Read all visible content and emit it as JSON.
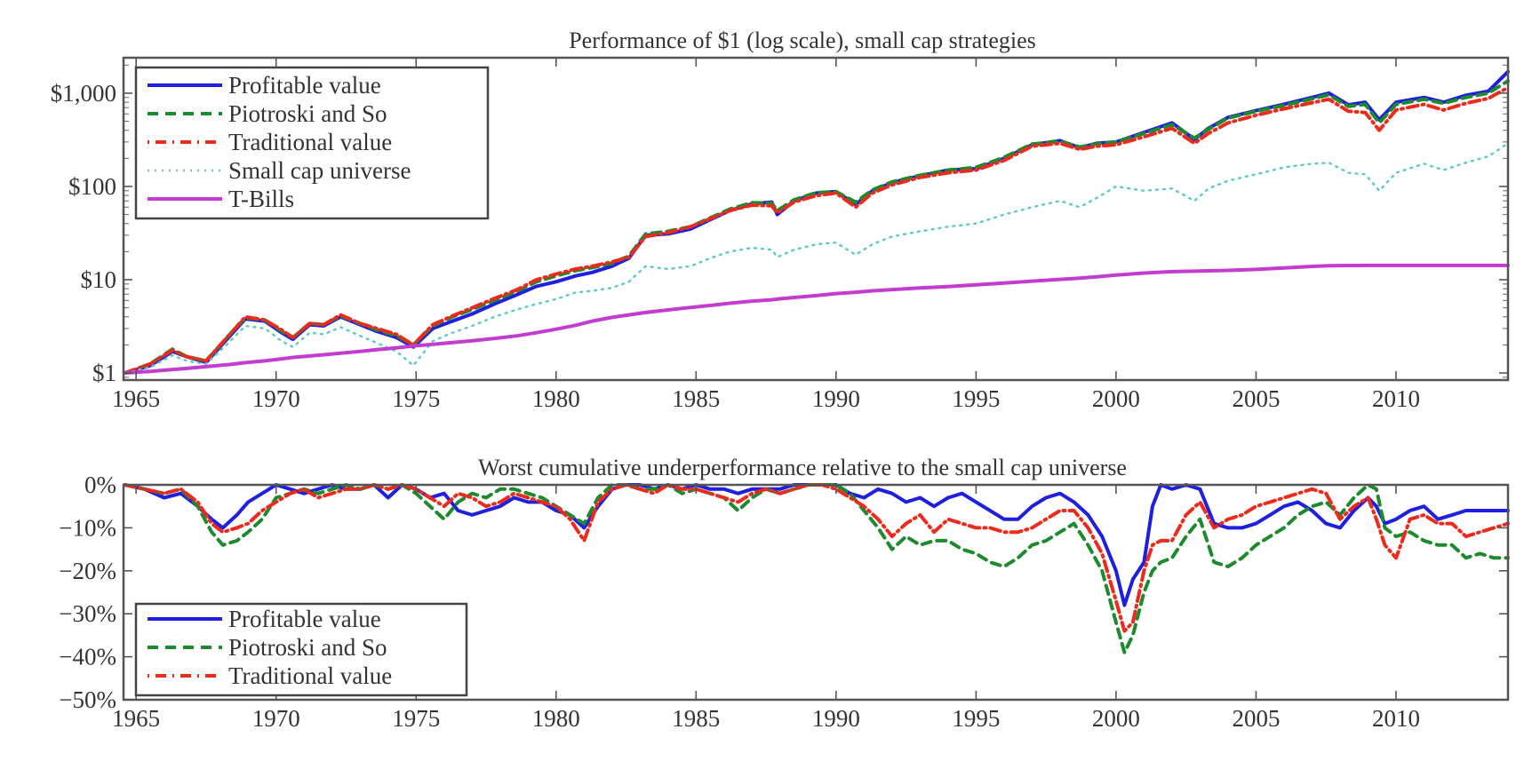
{
  "chart_data": [
    {
      "id": "performance",
      "type": "line",
      "title": "Performance of $1 (log scale), small cap strategies",
      "xlabel": "",
      "ylabel": "",
      "yscale": "log",
      "xlim": [
        1964.55,
        2014.0
      ],
      "ylim": [
        0.84,
        2400
      ],
      "grid": false,
      "legend_position": "top-left",
      "x_ticks": [
        1965,
        1970,
        1975,
        1980,
        1985,
        1990,
        1995,
        2000,
        2005,
        2010
      ],
      "x_tick_labels": [
        "1965",
        "1970",
        "1975",
        "1980",
        "1985",
        "1990",
        "1995",
        "2000",
        "2005",
        "2010"
      ],
      "y_ticks": [
        1,
        10,
        100,
        1000
      ],
      "y_tick_labels": [
        "$1",
        "$10",
        "$100",
        "$1,000"
      ],
      "x": [
        1964.6,
        1965.5,
        1966.3,
        1966.8,
        1967.5,
        1968.3,
        1968.9,
        1969.6,
        1970.2,
        1970.6,
        1971.2,
        1971.7,
        1972.3,
        1973.0,
        1973.6,
        1974.3,
        1974.9,
        1975.6,
        1976.3,
        1977.0,
        1977.8,
        1978.6,
        1979.3,
        1980.0,
        1980.7,
        1981.3,
        1982.0,
        1982.6,
        1983.2,
        1984.0,
        1984.8,
        1985.5,
        1986.2,
        1987.0,
        1987.7,
        1987.9,
        1988.5,
        1989.3,
        1990.0,
        1990.7,
        1991.3,
        1992.0,
        1993.0,
        1994.0,
        1995.0,
        1996.0,
        1997.0,
        1998.0,
        1998.7,
        1999.3,
        2000.0,
        2001.0,
        2002.0,
        2002.8,
        2003.3,
        2004.0,
        2005.0,
        2006.0,
        2007.0,
        2007.6,
        2008.3,
        2008.9,
        2009.4,
        2010.0,
        2011.0,
        2011.7,
        2012.5,
        2013.3,
        2014.0
      ],
      "series": [
        {
          "name": "Profitable value",
          "color": "#1f1fe0",
          "dash": "solid",
          "values": [
            1.0,
            1.2,
            1.7,
            1.5,
            1.3,
            2.4,
            3.8,
            3.6,
            2.7,
            2.3,
            3.3,
            3.2,
            4.0,
            3.3,
            2.8,
            2.4,
            1.9,
            3.0,
            3.6,
            4.3,
            5.5,
            6.9,
            8.5,
            9.5,
            11.0,
            12.0,
            14.0,
            17.0,
            30.0,
            31.0,
            35.0,
            44.0,
            55.0,
            65.0,
            68.0,
            50.0,
            70.0,
            85.0,
            88.0,
            64.0,
            90.0,
            110.0,
            130.0,
            150.0,
            155.0,
            200.0,
            280.0,
            310.0,
            260.0,
            290.0,
            300.0,
            380.0,
            480.0,
            320.0,
            420.0,
            550.0,
            650.0,
            760.0,
            900.0,
            1000.0,
            750.0,
            800.0,
            520.0,
            800.0,
            900.0,
            800.0,
            950.0,
            1050.0,
            1700.0
          ]
        },
        {
          "name": "Piotroski and So",
          "color": "#1e8a2e",
          "dash": "10,7",
          "values": [
            1.0,
            1.25,
            1.8,
            1.5,
            1.35,
            2.5,
            3.9,
            3.7,
            2.8,
            2.4,
            3.4,
            3.3,
            4.1,
            3.4,
            2.9,
            2.5,
            2.0,
            3.2,
            4.0,
            4.8,
            6.0,
            7.5,
            9.5,
            11.0,
            12.5,
            13.5,
            15.0,
            18.0,
            31.0,
            33.0,
            37.0,
            46.0,
            57.0,
            67.0,
            66.0,
            55.0,
            72.0,
            86.0,
            88.0,
            68.0,
            92.0,
            112.0,
            132.0,
            150.0,
            160.0,
            205.0,
            285.0,
            305.0,
            265.0,
            285.0,
            300.0,
            370.0,
            460.0,
            330.0,
            410.0,
            540.0,
            640.0,
            740.0,
            870.0,
            960.0,
            720.0,
            760.0,
            480.0,
            760.0,
            860.0,
            780.0,
            900.0,
            1000.0,
            1350.0
          ]
        },
        {
          "name": "Traditional value",
          "color": "#ee2a1c",
          "dash": "12,5,2,5",
          "values": [
            1.0,
            1.25,
            1.75,
            1.5,
            1.35,
            2.5,
            4.0,
            3.7,
            2.9,
            2.4,
            3.4,
            3.3,
            4.2,
            3.4,
            3.0,
            2.6,
            2.0,
            3.3,
            4.1,
            5.0,
            6.3,
            7.8,
            10.0,
            11.5,
            13.0,
            14.0,
            15.5,
            17.5,
            29.0,
            32.0,
            37.0,
            45.0,
            55.0,
            63.0,
            62.0,
            52.0,
            68.0,
            80.0,
            85.0,
            60.0,
            85.0,
            104.0,
            125.0,
            140.0,
            150.0,
            190.0,
            270.0,
            290.0,
            250.0,
            270.0,
            280.0,
            340.0,
            420.0,
            290.0,
            370.0,
            480.0,
            580.0,
            680.0,
            790.0,
            860.0,
            640.0,
            620.0,
            400.0,
            660.0,
            760.0,
            660.0,
            780.0,
            880.0,
            1150.0
          ]
        },
        {
          "name": "Small cap universe",
          "color": "#5fc9c4",
          "dash": "2,6",
          "values": [
            1.0,
            1.15,
            1.55,
            1.35,
            1.25,
            2.1,
            3.2,
            3.0,
            2.2,
            1.9,
            2.7,
            2.6,
            3.1,
            2.5,
            2.1,
            1.7,
            1.2,
            2.2,
            2.7,
            3.2,
            4.0,
            4.8,
            5.5,
            6.2,
            7.3,
            7.6,
            8.2,
            9.5,
            14.0,
            13.0,
            14.0,
            17.0,
            20.0,
            22.0,
            21.0,
            17.5,
            21.0,
            24.0,
            25.0,
            18.5,
            24.0,
            29.0,
            33.0,
            37.0,
            40.0,
            50.0,
            60.0,
            70.0,
            60.0,
            75.0,
            100.0,
            90.0,
            95.0,
            70.0,
            95.0,
            115.0,
            135.0,
            160.0,
            175.0,
            180.0,
            140.0,
            135.0,
            90.0,
            140.0,
            175.0,
            150.0,
            180.0,
            210.0,
            290.0
          ]
        },
        {
          "name": "T-Bills",
          "color": "#c23ccf",
          "dash": "solid",
          "values": [
            1.0,
            1.04,
            1.09,
            1.12,
            1.17,
            1.23,
            1.29,
            1.35,
            1.42,
            1.47,
            1.52,
            1.57,
            1.63,
            1.7,
            1.78,
            1.86,
            1.95,
            2.03,
            2.12,
            2.22,
            2.35,
            2.5,
            2.7,
            2.95,
            3.25,
            3.6,
            3.95,
            4.2,
            4.45,
            4.75,
            5.05,
            5.3,
            5.6,
            5.9,
            6.1,
            6.2,
            6.45,
            6.75,
            7.1,
            7.35,
            7.6,
            7.85,
            8.15,
            8.45,
            8.8,
            9.2,
            9.65,
            10.1,
            10.4,
            10.75,
            11.2,
            11.8,
            12.2,
            12.35,
            12.45,
            12.6,
            12.9,
            13.4,
            13.9,
            14.1,
            14.2,
            14.25,
            14.25,
            14.25,
            14.25,
            14.25,
            14.25,
            14.25,
            14.25
          ]
        }
      ]
    },
    {
      "id": "underperformance",
      "type": "line",
      "title": "Worst cumulative underperformance relative to the small cap universe",
      "xlabel": "",
      "ylabel": "",
      "xlim": [
        1964.55,
        2014.0
      ],
      "ylim": [
        -50,
        0
      ],
      "grid": false,
      "legend_position": "bottom-left",
      "x_ticks": [
        1965,
        1970,
        1975,
        1980,
        1985,
        1990,
        1995,
        2000,
        2005,
        2010
      ],
      "x_tick_labels": [
        "1965",
        "1970",
        "1975",
        "1980",
        "1985",
        "1990",
        "1995",
        "2000",
        "2005",
        "2010"
      ],
      "y_ticks": [
        0,
        -10,
        -20,
        -30,
        -40,
        -50
      ],
      "y_tick_labels": [
        "0%",
        "−10%",
        "−20%",
        "−30%",
        "−40%",
        "−50%"
      ],
      "x": [
        1964.6,
        1965.3,
        1966.0,
        1966.6,
        1967.2,
        1967.7,
        1968.1,
        1968.6,
        1969.0,
        1969.5,
        1970.0,
        1970.5,
        1971.0,
        1971.5,
        1972.0,
        1972.5,
        1973.0,
        1973.5,
        1974.0,
        1974.5,
        1975.0,
        1975.5,
        1976.0,
        1976.5,
        1977.0,
        1977.5,
        1978.0,
        1978.5,
        1979.0,
        1979.5,
        1980.0,
        1980.5,
        1981.0,
        1981.5,
        1982.0,
        1982.5,
        1983.0,
        1983.5,
        1984.0,
        1984.5,
        1985.0,
        1985.5,
        1986.0,
        1986.5,
        1987.0,
        1987.5,
        1988.0,
        1988.5,
        1989.0,
        1989.5,
        1990.0,
        1990.5,
        1991.0,
        1991.5,
        1992.0,
        1992.5,
        1993.0,
        1993.5,
        1994.0,
        1994.5,
        1995.0,
        1995.5,
        1996.0,
        1996.5,
        1997.0,
        1997.5,
        1998.0,
        1998.5,
        1999.0,
        1999.5,
        2000.0,
        2000.3,
        2000.6,
        2001.0,
        2001.3,
        2001.6,
        2002.0,
        2002.5,
        2003.0,
        2003.5,
        2004.0,
        2004.5,
        2005.0,
        2005.5,
        2006.0,
        2006.5,
        2007.0,
        2007.5,
        2008.0,
        2008.5,
        2009.0,
        2009.3,
        2009.6,
        2010.0,
        2010.5,
        2011.0,
        2011.5,
        2012.0,
        2012.5,
        2013.0,
        2013.5,
        2014.0
      ],
      "series": [
        {
          "name": "Profitable value",
          "color": "#1f1fe0",
          "dash": "solid",
          "values": [
            0,
            -1,
            -3,
            -2,
            -5,
            -8,
            -10,
            -7,
            -4,
            -2,
            0,
            -1,
            -2,
            -1,
            0,
            -1,
            -1,
            0,
            -3,
            0,
            -1,
            -3,
            -2,
            -6,
            -7,
            -6,
            -5,
            -3,
            -4,
            -4,
            -6,
            -7,
            -10,
            -5,
            -1,
            0,
            0,
            -1,
            0,
            -1,
            0,
            -1,
            -1,
            -2,
            -1,
            -1,
            -1,
            0,
            0,
            0,
            0,
            -2,
            -3,
            -1,
            -2,
            -4,
            -3,
            -5,
            -3,
            -2,
            -4,
            -6,
            -8,
            -8,
            -5,
            -3,
            -2,
            -4,
            -7,
            -12,
            -20,
            -28,
            -22,
            -18,
            -5,
            0,
            -1,
            0,
            -1,
            -9,
            -10,
            -10,
            -9,
            -7,
            -5,
            -4,
            -6,
            -9,
            -10,
            -6,
            -3,
            -5,
            -9,
            -8,
            -6,
            -5,
            -8,
            -7,
            -6,
            -6,
            -6,
            -6
          ]
        },
        {
          "name": "Piotroski and So",
          "color": "#1e8a2e",
          "dash": "10,7",
          "values": [
            0,
            -1,
            -2,
            -1,
            -5,
            -11,
            -14,
            -13,
            -11,
            -8,
            -3,
            -2,
            -1,
            -2,
            -1,
            0,
            -1,
            0,
            -1,
            0,
            -2,
            -5,
            -8,
            -4,
            -2,
            -3,
            -1,
            -1,
            -2,
            -3,
            -5,
            -7,
            -9,
            -3,
            0,
            0,
            -1,
            -1,
            0,
            -2,
            -1,
            -2,
            -3,
            -6,
            -3,
            -1,
            -2,
            -1,
            0,
            0,
            0,
            -2,
            -6,
            -10,
            -15,
            -12,
            -14,
            -13,
            -13,
            -15,
            -16,
            -18,
            -19,
            -17,
            -14,
            -13,
            -11,
            -9,
            -14,
            -20,
            -32,
            -39,
            -35,
            -25,
            -20,
            -18,
            -17,
            -12,
            -8,
            -18,
            -19,
            -17,
            -14,
            -12,
            -10,
            -7,
            -5,
            -4,
            -7,
            -3,
            0,
            -1,
            -10,
            -12,
            -11,
            -13,
            -14,
            -14,
            -17,
            -16,
            -17,
            -17
          ]
        },
        {
          "name": "Traditional value",
          "color": "#ee2a1c",
          "dash": "12,5,2,5",
          "values": [
            0,
            -1,
            -2,
            -1,
            -4,
            -9,
            -11,
            -10,
            -9,
            -6,
            -4,
            -2,
            -1,
            -3,
            -2,
            -1,
            -1,
            0,
            -1,
            0,
            -1,
            -3,
            -5,
            -2,
            -3,
            -5,
            -4,
            -2,
            -3,
            -4,
            -5,
            -8,
            -13,
            -4,
            -1,
            0,
            -1,
            -2,
            0,
            -1,
            -1,
            -2,
            -3,
            -4,
            -2,
            -1,
            -2,
            -1,
            0,
            0,
            -1,
            -3,
            -5,
            -8,
            -12,
            -9,
            -7,
            -11,
            -8,
            -9,
            -10,
            -10,
            -11,
            -11,
            -10,
            -8,
            -6,
            -6,
            -10,
            -16,
            -27,
            -34,
            -32,
            -20,
            -14,
            -13,
            -13,
            -7,
            -4,
            -10,
            -8,
            -7,
            -5,
            -4,
            -3,
            -2,
            -1,
            -2,
            -8,
            -5,
            -3,
            -8,
            -14,
            -17,
            -8,
            -7,
            -9,
            -9,
            -12,
            -11,
            -10,
            -9
          ]
        }
      ]
    }
  ]
}
